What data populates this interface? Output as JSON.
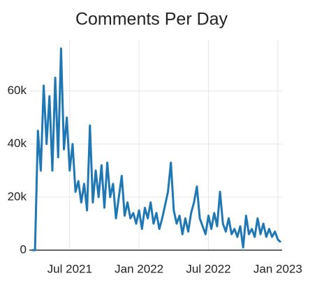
{
  "chart_data": {
    "type": "line",
    "title": "Comments Per Day",
    "categories": [
      null,
      null,
      null,
      null,
      null,
      null,
      null,
      null,
      null,
      null,
      null,
      null,
      null,
      "Jul 2021",
      null,
      null,
      null,
      null,
      null,
      null,
      null,
      null,
      null,
      null,
      null,
      null,
      null,
      null,
      null,
      null,
      null,
      null,
      null,
      null,
      null,
      null,
      null,
      "Jan 2022",
      null,
      null,
      null,
      null,
      null,
      null,
      null,
      null,
      null,
      null,
      null,
      null,
      null,
      null,
      null,
      null,
      null,
      null,
      null,
      null,
      null,
      null,
      null,
      "Jul 2022",
      null,
      null,
      null,
      null,
      null,
      null,
      null,
      null,
      null,
      null,
      null,
      null,
      null,
      null,
      null,
      null,
      null,
      null,
      null,
      null,
      null,
      null,
      null,
      "Jan 2023",
      null
    ],
    "series": [
      {
        "name": "Comments",
        "color": "#1f77b4",
        "values": [
          0,
          0,
          45000,
          30000,
          62000,
          40000,
          58000,
          30000,
          65000,
          35000,
          76000,
          38000,
          50000,
          30000,
          40000,
          22000,
          26000,
          18000,
          25000,
          15000,
          47000,
          18000,
          30000,
          20000,
          32000,
          16000,
          33000,
          20000,
          25000,
          12000,
          20000,
          28000,
          13000,
          18000,
          12000,
          14000,
          10000,
          15000,
          8000,
          16000,
          12000,
          18000,
          10000,
          14000,
          8000,
          12000,
          17000,
          22000,
          33000,
          15000,
          10000,
          13000,
          6000,
          12000,
          7000,
          14000,
          18000,
          24000,
          12000,
          9000,
          6000,
          13000,
          8000,
          14000,
          9000,
          22000,
          10000,
          7000,
          12000,
          6000,
          8000,
          5000,
          9000,
          1000,
          13000,
          6000,
          8000,
          5000,
          12000,
          6000,
          10000,
          5000,
          8000,
          5000,
          7000,
          4000,
          3000
        ]
      }
    ],
    "ylim": [
      0,
      78000
    ],
    "yticks": [
      0,
      {
        "value": 20000,
        "label": "20k"
      },
      {
        "value": 40000,
        "label": "40k"
      },
      {
        "value": 60000,
        "label": "60k"
      }
    ],
    "grid": true
  }
}
